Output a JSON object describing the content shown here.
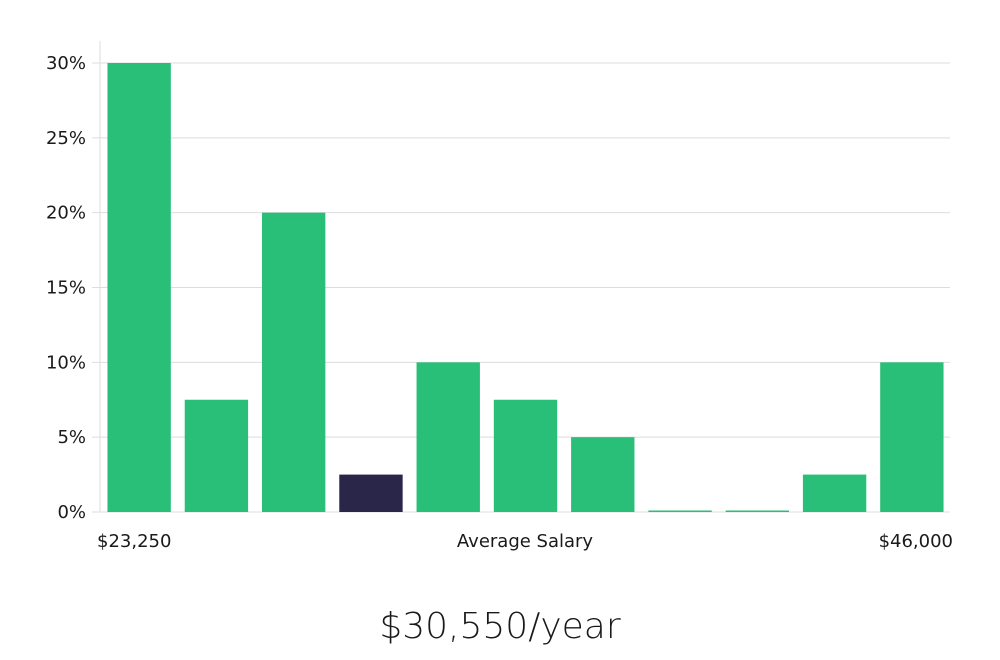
{
  "chart_data": {
    "type": "bar",
    "values": [
      30,
      7.5,
      20,
      2.5,
      10,
      7.5,
      5,
      0,
      0,
      2.5,
      10
    ],
    "highlight_index": 3,
    "y_ticks": [
      "0%",
      "5%",
      "10%",
      "15%",
      "20%",
      "25%",
      "30%"
    ],
    "ylim": [
      0,
      30
    ],
    "x_min_label": "$23,250",
    "x_center_label": "Average Salary",
    "x_max_label": "$46,000",
    "grid": true,
    "colors": {
      "bar": "#2abf78",
      "highlight": "#29264a",
      "grid": "#dddddd"
    }
  },
  "summary": {
    "salary": "$30,550/year"
  }
}
